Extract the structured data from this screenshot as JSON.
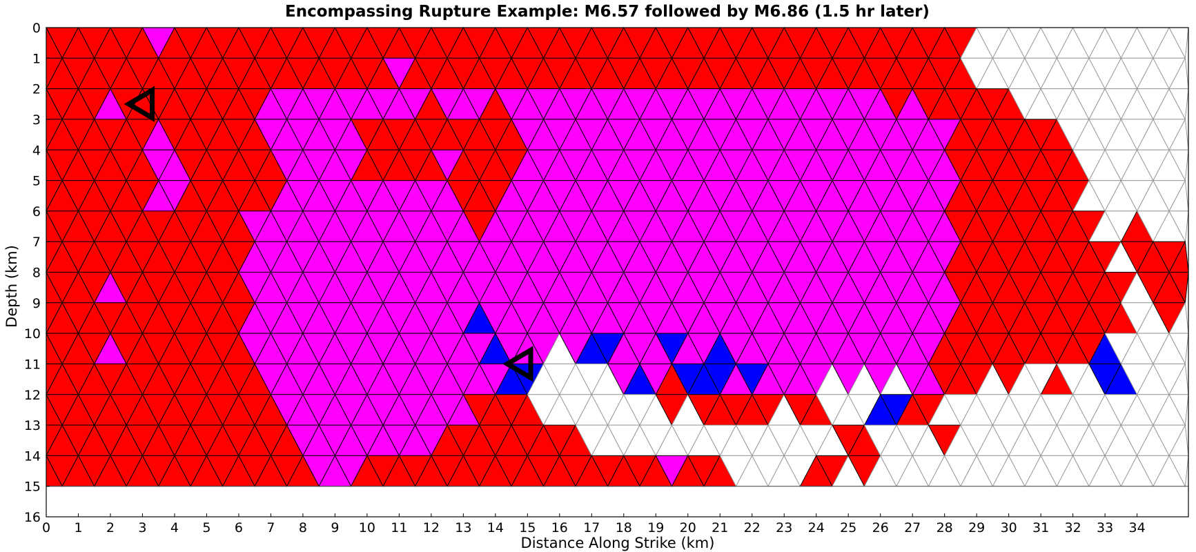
{
  "chart_data": {
    "type": "heatmap",
    "title": "Encompassing Rupture Example: M6.57 followed by M6.86 (1.5 hr later)",
    "xlabel": "Distance Along Strike (km)",
    "ylabel": "Depth (km)",
    "xlim": [
      0,
      35.6
    ],
    "ylim": [
      16,
      0
    ],
    "y_inverted": true,
    "x_ticks": [
      "0",
      "1",
      "2",
      "3",
      "4",
      "5",
      "6",
      "7",
      "8",
      "9",
      "10",
      "11",
      "12",
      "13",
      "14",
      "15",
      "16",
      "17",
      "18",
      "19",
      "20",
      "21",
      "22",
      "23",
      "24",
      "25",
      "26",
      "27",
      "28",
      "29",
      "30",
      "31",
      "32",
      "33",
      "34"
    ],
    "y_ticks": [
      "0",
      "1",
      "2",
      "3",
      "4",
      "5",
      "6",
      "7",
      "8",
      "9",
      "10",
      "11",
      "12",
      "13",
      "14",
      "15",
      "16"
    ],
    "grid": "triangular mesh",
    "fault_bottom_depth_km": 15,
    "triangle_edge_km": 1.0,
    "colors": {
      "first_event_only": "#ff0000",
      "both_events": "#ff00ff",
      "second_event_only": "#0000ff",
      "not_ruptured": "#ffffff",
      "mesh_line_ruptured": "#000000",
      "mesh_line_unruptured": "#999999"
    },
    "regions": [
      {
        "category": "first_event_only",
        "description": "red, ruptured only in first event",
        "x_ranges_km": [
          [
            0,
            29
          ]
        ],
        "depth_range_km": [
          0,
          15
        ]
      },
      {
        "category": "both_events",
        "description": "magenta overlap zone",
        "x_range_km": [
          6,
          28
        ],
        "depth_range_km": [
          2,
          12.5
        ]
      },
      {
        "category": "second_event_only",
        "description": "blue patches",
        "locations_km": [
          [
            13.5,
            9.2
          ],
          [
            14,
            10.5
          ],
          [
            14.8,
            11.2
          ],
          [
            17.2,
            10.7
          ],
          [
            18.5,
            11.2
          ],
          [
            19.5,
            10.8
          ],
          [
            20.2,
            11.3
          ],
          [
            21.3,
            11
          ],
          [
            22,
            11.7
          ],
          [
            26.3,
            12.3
          ],
          [
            34,
            10.1
          ],
          [
            33.3,
            11
          ],
          [
            33.3,
            11.8
          ]
        ]
      }
    ],
    "hypocenters": [
      {
        "x_km": 3.0,
        "depth_km": 2.5,
        "magnitude": 6.57,
        "marker": "triangle-outline"
      },
      {
        "x_km": 14.8,
        "depth_km": 11.0,
        "magnitude": 6.86,
        "marker": "triangle-outline"
      }
    ]
  }
}
